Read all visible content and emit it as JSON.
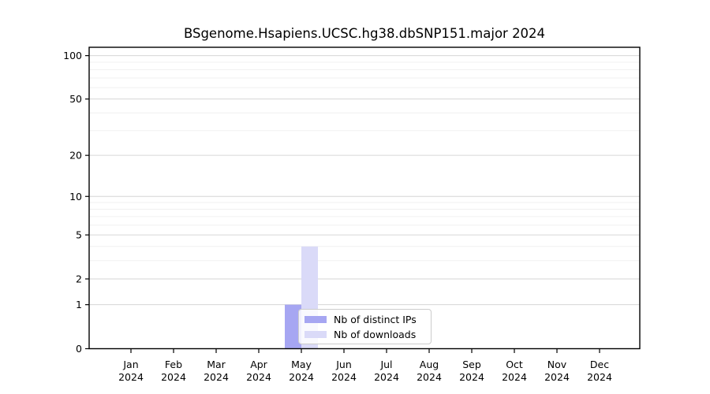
{
  "chart_data": {
    "type": "bar",
    "title": "BSgenome.Hsapiens.UCSC.hg38.dbSNP151.major 2024",
    "categories": [
      "Jan",
      "Feb",
      "Mar",
      "Apr",
      "May",
      "Jun",
      "Jul",
      "Aug",
      "Sep",
      "Oct",
      "Nov",
      "Dec"
    ],
    "category_year": "2024",
    "series": [
      {
        "name": "Nb of distinct IPs",
        "color": "#a6a6f2",
        "values": [
          0,
          0,
          0,
          0,
          1,
          0,
          0,
          0,
          0,
          0,
          0,
          0
        ]
      },
      {
        "name": "Nb of downloads",
        "color": "#dadaf8",
        "values": [
          0,
          0,
          0,
          0,
          4,
          0,
          0,
          0,
          0,
          0,
          0,
          0
        ]
      }
    ],
    "xlabel": "",
    "ylabel": "",
    "ylim": [
      0,
      100
    ],
    "yscale": "log1p",
    "ytick_values": [
      0,
      1,
      2,
      5,
      10,
      20,
      50,
      100
    ],
    "minor_grid_values": [
      3,
      4,
      6,
      7,
      8,
      9,
      30,
      40,
      60,
      70,
      80,
      90
    ],
    "grid": "horizontal",
    "legend_position": "lower-center-inside",
    "colors": {
      "spine": "#000000",
      "major_grid": "#d6d6d6",
      "minor_grid": "#f0f0f0",
      "text": "#000000"
    }
  }
}
